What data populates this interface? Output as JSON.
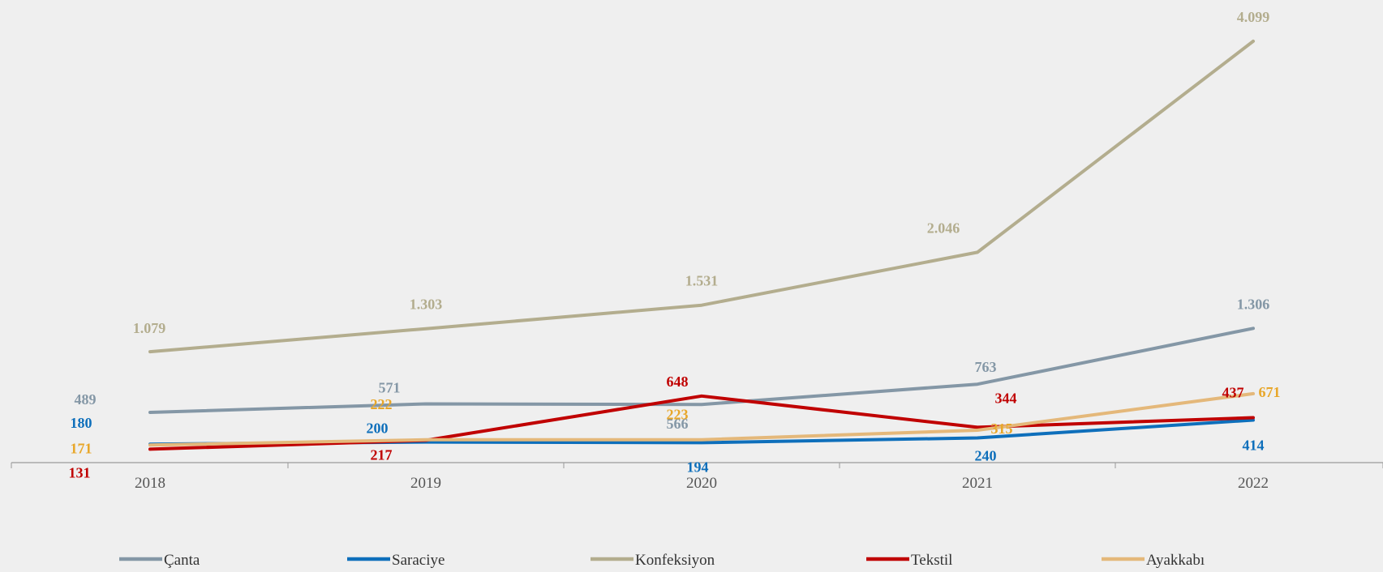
{
  "chart_data": {
    "type": "line",
    "title": "",
    "xlabel": "",
    "ylabel": "",
    "categories": [
      "2018",
      "2019",
      "2020",
      "2021",
      "2022"
    ],
    "ylim": [
      0,
      4500
    ],
    "grid": false,
    "legend_position": "bottom",
    "series": [
      {
        "name": "Çanta",
        "color": "#8497a6",
        "values": [
          489,
          571,
          566,
          763,
          1306
        ],
        "labels": [
          "489",
          "571",
          "566",
          "763",
          "1.306"
        ]
      },
      {
        "name": "Saraciye",
        "color": "#0e6fbb",
        "values": [
          180,
          200,
          194,
          240,
          414
        ],
        "labels": [
          "180",
          "200",
          "194",
          "240",
          "414"
        ]
      },
      {
        "name": "Konfeksiyon",
        "color": "#b3ad8e",
        "values": [
          1079,
          1303,
          1531,
          2046,
          4099
        ],
        "labels": [
          "1.079",
          "1.303",
          "1.531",
          "2.046",
          "4.099"
        ]
      },
      {
        "name": "Tekstil",
        "color": "#c00000",
        "values": [
          131,
          217,
          648,
          344,
          437
        ],
        "labels": [
          "131",
          "217",
          "648",
          "344",
          "437"
        ]
      },
      {
        "name": "Ayakkabı",
        "color": "#e4b87a",
        "values": [
          171,
          222,
          223,
          315,
          671
        ],
        "labels": [
          "171",
          "222",
          "223",
          "315",
          "671"
        ],
        "label_color": "#e8a72a"
      }
    ]
  }
}
